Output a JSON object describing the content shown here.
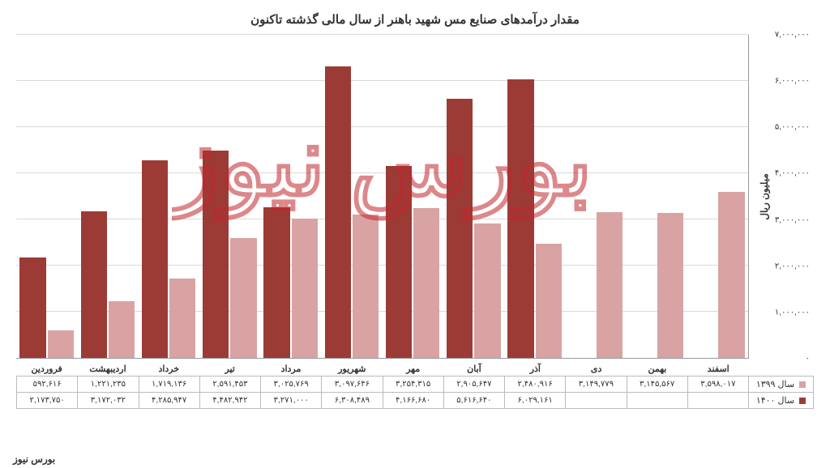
{
  "chart": {
    "type": "bar",
    "title": "مقدار درآمدهای صنایع مس شهید باهنر از سال مالی گذشته تاکنون",
    "title_fontsize": 15,
    "y_label": "میلیون ریال",
    "label_fontsize": 12,
    "background_color": "#ffffff",
    "grid_color": "#d9d9d9",
    "axis_color": "#999999",
    "ylim_min": 0,
    "ylim_max": 7000000,
    "ytick_step": 1000000,
    "y_ticks": [
      "۰",
      "۱,۰۰۰,۰۰۰",
      "۲,۰۰۰,۰۰۰",
      "۳,۰۰۰,۰۰۰",
      "۴,۰۰۰,۰۰۰",
      "۵,۰۰۰,۰۰۰",
      "۶,۰۰۰,۰۰۰",
      "۷,۰۰۰,۰۰۰"
    ],
    "categories": [
      "فروردین",
      "اردیبهشت",
      "خرداد",
      "تیر",
      "مرداد",
      "شهریور",
      "مهر",
      "آبان",
      "آذر",
      "دی",
      "بهمن",
      "اسفند"
    ],
    "series": [
      {
        "name": "سال ۱۳۹۹",
        "color": "#d9a3a3",
        "values": [
          592616,
          1221235,
          1719136,
          2591453,
          3025769,
          3097646,
          3254315,
          2905647,
          2480916,
          3149779,
          3145567,
          3598017
        ],
        "display": [
          "۵۹۲,۶۱۶",
          "۱,۲۲۱,۲۳۵",
          "۱,۷۱۹,۱۳۶",
          "۲,۵۹۱,۴۵۳",
          "۳,۰۲۵,۷۶۹",
          "۳,۰۹۷,۶۴۶",
          "۳,۲۵۴,۳۱۵",
          "۲,۹۰۵,۶۴۷",
          "۲,۴۸۰,۹۱۶",
          "۳,۱۴۹,۷۷۹",
          "۳,۱۴۵,۵۶۷",
          "۳,۵۹۸,۰۱۷"
        ]
      },
      {
        "name": "سال ۱۴۰۰",
        "color": "#9c3b36",
        "values": [
          2173750,
          3172032,
          4285947,
          4482942,
          3271000,
          6308489,
          4166680,
          5616640,
          6029161,
          null,
          null,
          null
        ],
        "display": [
          "۲,۱۷۳,۷۵۰",
          "۳,۱۷۲,۰۳۲",
          "۴,۲۸۵,۹۴۷",
          "۴,۴۸۲,۹۴۲",
          "۳,۲۷۱,۰۰۰",
          "۶,۳۰۸,۴۸۹",
          "۴,۱۶۶,۶۸۰",
          "۵,۶۱۶,۶۴۰",
          "۶,۰۲۹,۱۶۱",
          "",
          "",
          ""
        ]
      }
    ],
    "bar_width": 0.48
  },
  "watermark": {
    "text": "بورس نیوز",
    "color": "#c1272d",
    "opacity": 0.55
  },
  "footer": {
    "credit": "بورس نیوز"
  }
}
